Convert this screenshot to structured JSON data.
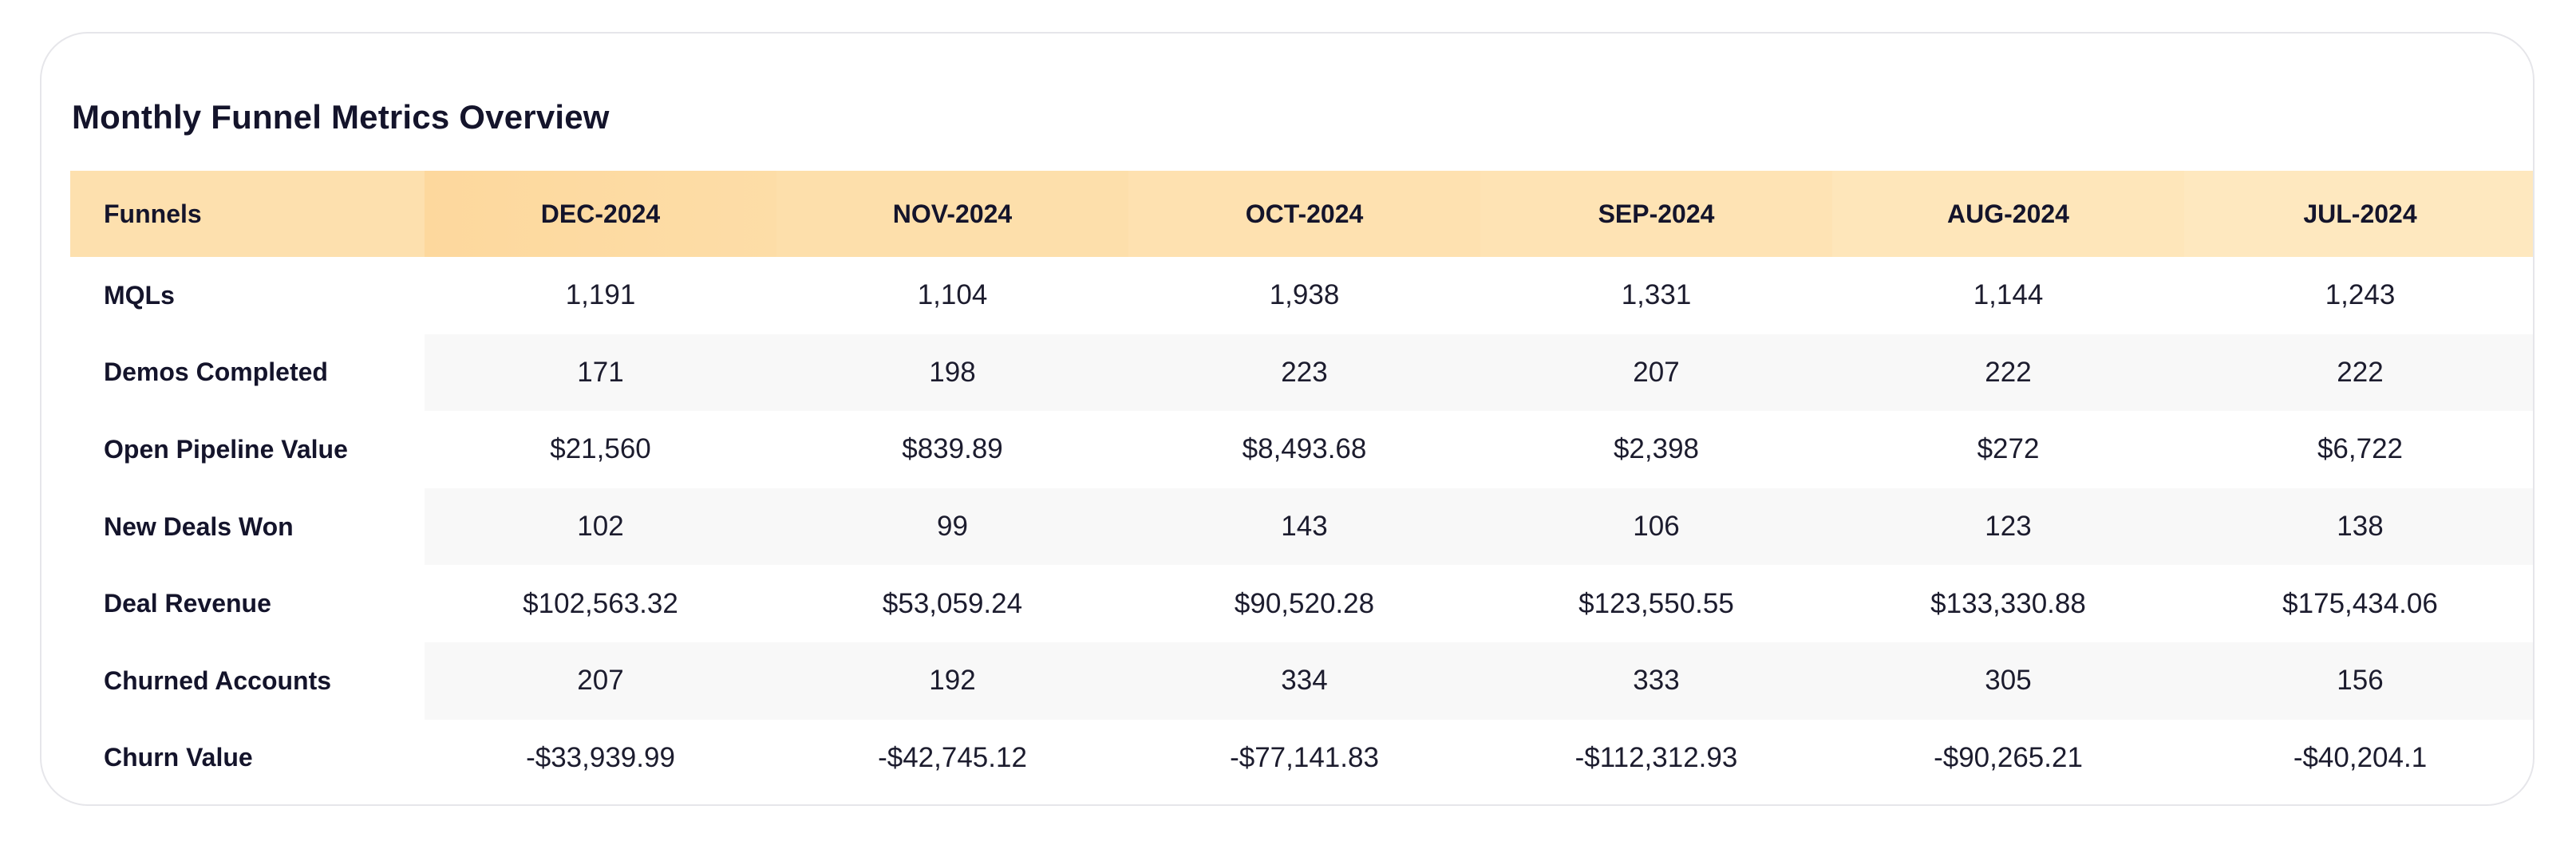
{
  "card": {
    "title": "Monthly Funnel Metrics Overview"
  },
  "table": {
    "header_label": "Funnels",
    "months": [
      "DEC-2024",
      "NOV-2024",
      "OCT-2024",
      "SEP-2024",
      "AUG-2024",
      "JUL-2024"
    ],
    "rows": [
      {
        "label": "MQLs",
        "values": [
          "1,191",
          "1,104",
          "1,938",
          "1,331",
          "1,144",
          "1,243"
        ]
      },
      {
        "label": "Demos Completed",
        "values": [
          "171",
          "198",
          "223",
          "207",
          "222",
          "222"
        ]
      },
      {
        "label": "Open Pipeline Value",
        "values": [
          "$21,560",
          "$839.89",
          "$8,493.68",
          "$2,398",
          "$272",
          "$6,722"
        ]
      },
      {
        "label": "New Deals Won",
        "values": [
          "102",
          "99",
          "143",
          "106",
          "123",
          "138"
        ]
      },
      {
        "label": "Deal Revenue",
        "values": [
          "$102,563.32",
          "$53,059.24",
          "$90,520.28",
          "$123,550.55",
          "$133,330.88",
          "$175,434.06"
        ]
      },
      {
        "label": "Churned Accounts",
        "values": [
          "207",
          "192",
          "334",
          "333",
          "305",
          "156"
        ]
      },
      {
        "label": "Churn Value",
        "values": [
          "-$33,939.99",
          "-$42,745.12",
          "-$77,141.83",
          "-$112,312.93",
          "-$90,265.21",
          "-$40,204.1"
        ]
      }
    ]
  },
  "colors": {
    "header_background": "#fde0ae",
    "header_accent": "#fdd89d",
    "striped_row_background": "#f8f8f8",
    "card_border": "#e6e6ea",
    "text": "#14142b"
  }
}
